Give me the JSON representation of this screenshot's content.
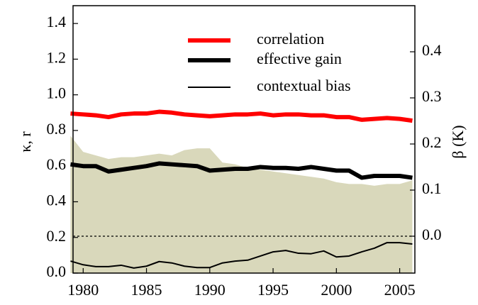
{
  "chart_data": {
    "type": "line",
    "ylabel": "κ, r",
    "y2label": "β (K)",
    "x": [
      1979,
      1980,
      1981,
      1982,
      1983,
      1984,
      1985,
      1986,
      1987,
      1988,
      1989,
      1990,
      1991,
      1992,
      1993,
      1994,
      1995,
      1996,
      1997,
      1998,
      1999,
      2000,
      2001,
      2002,
      2003,
      2004,
      2005,
      2006
    ],
    "xlim": [
      1979.2,
      2006.2
    ],
    "xticks": [
      1980,
      1985,
      1990,
      1995,
      2000,
      2005
    ],
    "ylim": [
      0,
      1.5
    ],
    "yticks": [
      {
        "value": 0,
        "label": "0.0"
      },
      {
        "value": 0.2,
        "label": "0.2"
      },
      {
        "value": 0.4,
        "label": "0.4"
      },
      {
        "value": 0.6,
        "label": "0.6"
      },
      {
        "value": 0.8,
        "label": "0.8"
      },
      {
        "value": 1.0,
        "label": "1.0"
      },
      {
        "value": 1.2,
        "label": "1.2"
      },
      {
        "value": 1.4,
        "label": "1.4"
      }
    ],
    "y2lim": [
      -0.08,
      0.5
    ],
    "y2ticks": [
      {
        "value": 0,
        "label": "0.0"
      },
      {
        "value": 0.1,
        "label": "0.1"
      },
      {
        "value": 0.2,
        "label": "0.2"
      },
      {
        "value": 0.3,
        "label": "0.3"
      },
      {
        "value": 0.4,
        "label": "0.4"
      }
    ],
    "y2_hline": 0,
    "shaded": {
      "color": "#d9d8bb",
      "values": [
        0.77,
        0.68,
        0.66,
        0.64,
        0.65,
        0.65,
        0.66,
        0.67,
        0.66,
        0.69,
        0.7,
        0.7,
        0.62,
        0.61,
        0.59,
        0.58,
        0.57,
        0.56,
        0.55,
        0.54,
        0.53,
        0.51,
        0.5,
        0.5,
        0.49,
        0.5,
        0.5,
        0.52
      ]
    },
    "series": [
      {
        "name": "correlation",
        "color": "#ff0000",
        "width": 6,
        "values": [
          0.895,
          0.89,
          0.885,
          0.875,
          0.89,
          0.895,
          0.895,
          0.905,
          0.9,
          0.89,
          0.885,
          0.88,
          0.885,
          0.89,
          0.89,
          0.895,
          0.885,
          0.89,
          0.89,
          0.885,
          0.885,
          0.875,
          0.875,
          0.86,
          0.865,
          0.87,
          0.865,
          0.855
        ]
      },
      {
        "name": "effective gain",
        "color": "#000000",
        "width": 6,
        "values": [
          0.61,
          0.6,
          0.6,
          0.57,
          0.58,
          0.59,
          0.6,
          0.615,
          0.61,
          0.605,
          0.6,
          0.575,
          0.58,
          0.585,
          0.585,
          0.595,
          0.59,
          0.59,
          0.585,
          0.595,
          0.585,
          0.575,
          0.575,
          0.535,
          0.545,
          0.545,
          0.545,
          0.535
        ]
      },
      {
        "name": "contextual bias",
        "color": "#000000",
        "width": 2,
        "axis": "y2",
        "values": [
          -0.054,
          -0.062,
          -0.066,
          -0.066,
          -0.063,
          -0.069,
          -0.065,
          -0.055,
          -0.058,
          -0.065,
          -0.068,
          -0.068,
          -0.058,
          -0.054,
          -0.052,
          -0.043,
          -0.034,
          -0.031,
          -0.037,
          -0.038,
          -0.032,
          -0.045,
          -0.043,
          -0.034,
          -0.026,
          -0.014,
          -0.014,
          -0.017
        ]
      }
    ]
  }
}
